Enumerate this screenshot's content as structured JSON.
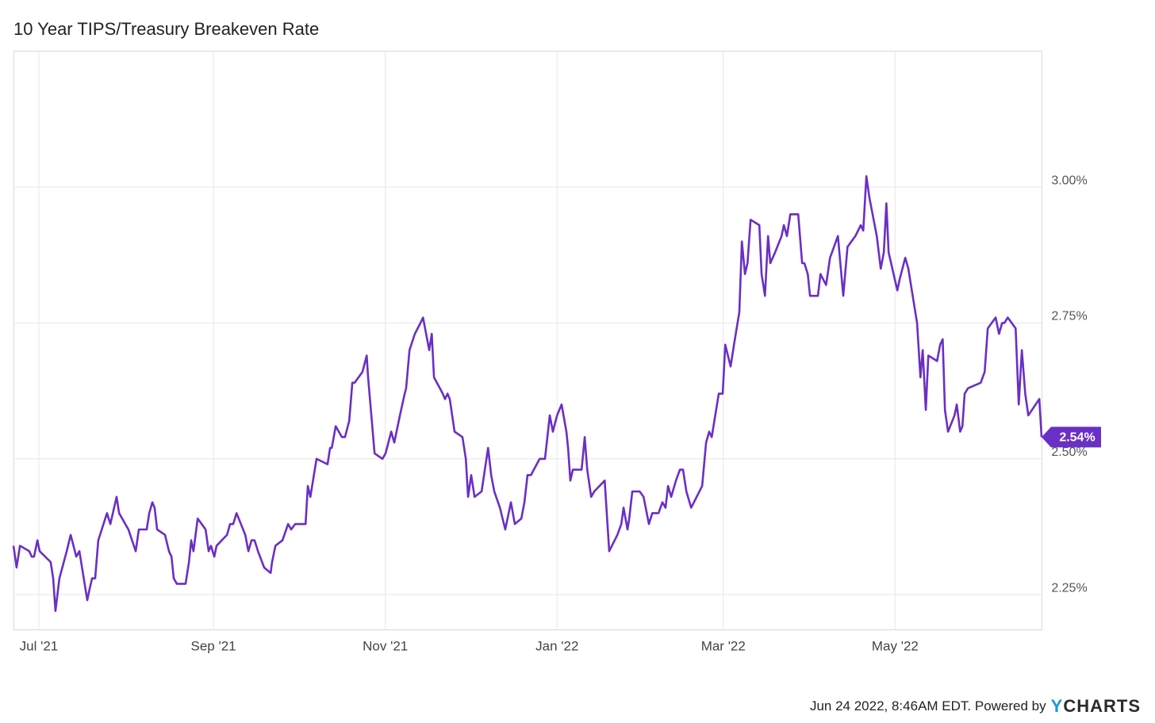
{
  "chart_data": {
    "type": "line",
    "title": "10 Year TIPS/Treasury Breakeven Rate",
    "color": "#6a2fc4",
    "grid": true,
    "xlim": [
      0,
      365
    ],
    "xticks": [
      {
        "value": 9,
        "label": "Jul '21"
      },
      {
        "value": 71,
        "label": "Sep '21"
      },
      {
        "value": 132,
        "label": "Nov '21"
      },
      {
        "value": 193,
        "label": "Jan '22"
      },
      {
        "value": 252,
        "label": "Mar '22"
      },
      {
        "value": 313,
        "label": "May '22"
      }
    ],
    "ylim": [
      2.186,
      3.251
    ],
    "yticks": [
      {
        "value": 2.25,
        "label": "2.25%"
      },
      {
        "value": 2.5,
        "label": "2.50%"
      },
      {
        "value": 2.75,
        "label": "2.75%"
      },
      {
        "value": 3.0,
        "label": "3.00%"
      }
    ],
    "x": [
      0,
      1.1,
      2.3,
      5.6,
      6.5,
      7.3,
      8.5,
      9.3,
      13.2,
      14.1,
      14.9,
      16.3,
      18.9,
      20.3,
      22.3,
      23.4,
      26.2,
      27.0,
      27.9,
      29.0,
      30.1,
      33.2,
      34.4,
      36.6,
      37.5,
      40.8,
      43.4,
      44.5,
      47.3,
      48.2,
      49.3,
      50.1,
      51.0,
      53.8,
      55.2,
      56.1,
      56.9,
      58.0,
      61.1,
      62.3,
      63.1,
      63.9,
      65.4,
      68.2,
      69.3,
      70.1,
      71.3,
      72.1,
      75.8,
      76.9,
      78.0,
      79.2,
      82.3,
      83.4,
      84.5,
      85.6,
      86.8,
      89.0,
      91.3,
      91.8,
      93.0,
      95.5,
      97.5,
      98.6,
      100.0,
      103.7,
      104.5,
      105.4,
      107.6,
      111.5,
      112.4,
      113.0,
      114.4,
      116.6,
      117.7,
      119.2,
      120.3,
      121.1,
      123.9,
      125.4,
      125.9,
      128.2,
      131.0,
      132.1,
      134.1,
      135.2,
      137.2,
      138.9,
      139.4,
      140.6,
      142.5,
      144.5,
      145.4,
      147.6,
      148.5,
      149.3,
      152.4,
      153.2,
      154.1,
      154.9,
      156.6,
      159.4,
      160.6,
      161.4,
      162.5,
      163.7,
      166.2,
      168.5,
      169.6,
      170.7,
      172.7,
      174.6,
      176.6,
      178.0,
      180.3,
      181.4,
      182.5,
      183.7,
      186.8,
      188.7,
      190.4,
      191.5,
      193.0,
      194.6,
      196.3,
      196.9,
      197.7,
      198.6,
      201.7,
      202.8,
      203.7,
      205.1,
      206.2,
      209.9,
      211.5,
      214.4,
      215.8,
      216.6,
      218.0,
      218.6,
      219.7,
      222.3,
      223.7,
      225.6,
      226.8,
      229.0,
      230.4,
      231.5,
      232.4,
      233.5,
      235.2,
      236.6,
      237.7,
      238.9,
      240.6,
      244.5,
      245.9,
      247.0,
      247.9,
      250.4,
      251.8,
      252.7,
      254.6,
      255.8,
      257.7,
      258.6,
      259.7,
      260.6,
      261.7,
      264.8,
      265.6,
      266.8,
      267.9,
      268.7,
      270.4,
      272.7,
      273.5,
      274.6,
      275.8,
      278.6,
      280.0,
      280.8,
      282.0,
      282.8,
      285.6,
      286.5,
      288.5,
      289.9,
      291.3,
      292.7,
      294.6,
      296.1,
      298.9,
      300.8,
      301.7,
      302.8,
      303.9,
      306.5,
      307.9,
      309.0,
      309.9,
      310.7,
      313.8,
      314.6,
      316.1,
      316.6,
      317.7,
      320.8,
      322.0,
      322.8,
      323.9,
      324.8,
      327.9,
      329.0,
      329.9,
      330.7,
      331.8,
      334.1,
      334.9,
      336.1,
      336.9,
      337.7,
      338.9,
      343.4,
      344.8,
      345.9,
      348.7,
      349.9,
      351.0,
      351.8,
      353.0,
      355.8,
      356.9,
      358.0,
      359.2,
      360.3,
      364.2,
      365
    ],
    "values": [
      2.34,
      2.3,
      2.34,
      2.33,
      2.32,
      2.32,
      2.35,
      2.33,
      2.31,
      2.28,
      2.22,
      2.28,
      2.33,
      2.36,
      2.32,
      2.33,
      2.24,
      2.26,
      2.28,
      2.28,
      2.35,
      2.4,
      2.38,
      2.43,
      2.4,
      2.37,
      2.33,
      2.37,
      2.37,
      2.4,
      2.42,
      2.41,
      2.37,
      2.36,
      2.33,
      2.32,
      2.28,
      2.27,
      2.27,
      2.31,
      2.35,
      2.33,
      2.39,
      2.37,
      2.33,
      2.34,
      2.32,
      2.34,
      2.36,
      2.38,
      2.38,
      2.4,
      2.36,
      2.33,
      2.35,
      2.35,
      2.33,
      2.3,
      2.29,
      2.31,
      2.34,
      2.35,
      2.38,
      2.37,
      2.38,
      2.38,
      2.45,
      2.43,
      2.5,
      2.49,
      2.52,
      2.52,
      2.56,
      2.54,
      2.54,
      2.57,
      2.64,
      2.64,
      2.66,
      2.69,
      2.65,
      2.51,
      2.5,
      2.51,
      2.55,
      2.53,
      2.58,
      2.62,
      2.63,
      2.7,
      2.73,
      2.75,
      2.76,
      2.7,
      2.73,
      2.65,
      2.62,
      2.61,
      2.62,
      2.61,
      2.55,
      2.54,
      2.5,
      2.43,
      2.47,
      2.43,
      2.44,
      2.52,
      2.47,
      2.44,
      2.41,
      2.37,
      2.42,
      2.38,
      2.39,
      2.42,
      2.47,
      2.47,
      2.5,
      2.5,
      2.58,
      2.55,
      2.58,
      2.6,
      2.55,
      2.52,
      2.46,
      2.48,
      2.48,
      2.54,
      2.48,
      2.43,
      2.44,
      2.46,
      2.33,
      2.36,
      2.38,
      2.41,
      2.37,
      2.39,
      2.44,
      2.44,
      2.43,
      2.38,
      2.4,
      2.4,
      2.42,
      2.41,
      2.45,
      2.43,
      2.46,
      2.48,
      2.48,
      2.44,
      2.41,
      2.45,
      2.53,
      2.55,
      2.54,
      2.62,
      2.62,
      2.71,
      2.67,
      2.71,
      2.77,
      2.9,
      2.84,
      2.86,
      2.94,
      2.93,
      2.84,
      2.8,
      2.91,
      2.86,
      2.88,
      2.91,
      2.93,
      2.91,
      2.95,
      2.95,
      2.86,
      2.86,
      2.84,
      2.8,
      2.8,
      2.84,
      2.82,
      2.87,
      2.89,
      2.91,
      2.8,
      2.89,
      2.91,
      2.93,
      2.92,
      3.02,
      2.98,
      2.91,
      2.85,
      2.88,
      2.97,
      2.88,
      2.81,
      2.83,
      2.86,
      2.87,
      2.85,
      2.75,
      2.65,
      2.7,
      2.59,
      2.69,
      2.68,
      2.71,
      2.72,
      2.59,
      2.55,
      2.58,
      2.6,
      2.55,
      2.56,
      2.62,
      2.63,
      2.64,
      2.66,
      2.74,
      2.76,
      2.73,
      2.75,
      2.75,
      2.76,
      2.74,
      2.6,
      2.7,
      2.62,
      2.58,
      2.61,
      2.54
    ],
    "annotations": [
      {
        "x": 365,
        "y": 2.54,
        "label": "2.54%"
      }
    ],
    "footer": "Jun 24 2022, 8:46AM EDT. Powered by",
    "logo": "YCHARTS"
  }
}
